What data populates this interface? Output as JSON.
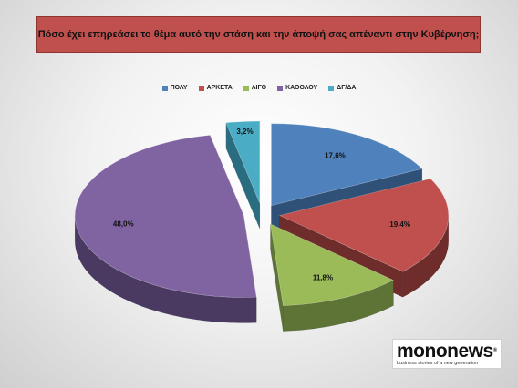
{
  "title": "Πόσο έχει επηρεάσει το θέμα αυτό την στάση και την άποψή σας απέναντι στην Κυβέρνηση;",
  "chart_data": {
    "type": "pie",
    "style": "3d-exploded",
    "legend_position": "top",
    "categories": [
      "ΠΟΛΥ",
      "ΑΡΚΕΤΑ",
      "ΛΙΓΟ",
      "ΚΑΘΟΛΟΥ",
      "ΔΓ/ΔΑ"
    ],
    "values": [
      17.6,
      19.4,
      11.8,
      48.0,
      3.2
    ],
    "labels": [
      "17,6%",
      "19,4%",
      "11,8%",
      "48,0%",
      "3,2%"
    ],
    "colors": [
      "#4f81bd",
      "#c0504d",
      "#9bbb59",
      "#8064a2",
      "#4bacc6"
    ],
    "side_colors": [
      "#2f5077",
      "#6e2c2a",
      "#5e7336",
      "#4a3a62",
      "#2b6d80"
    ]
  },
  "logo": {
    "word": "mononews",
    "mark": "®",
    "tagline": "business stories of a new generation"
  }
}
